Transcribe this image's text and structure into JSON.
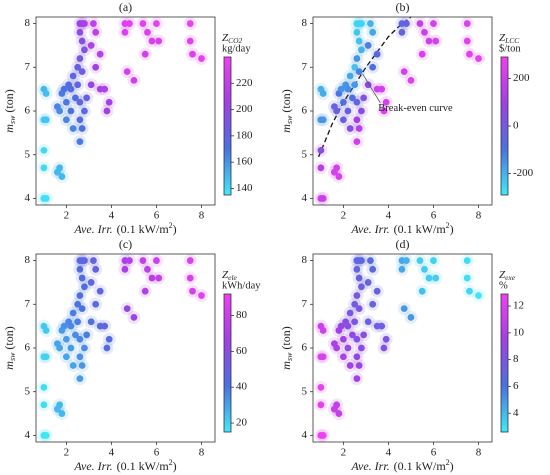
{
  "chart_data": [
    {
      "type": "scatter",
      "title": "(a)",
      "xlabel": {
        "main": "Ave. Irr.",
        "unit": "(0.1 kW/m",
        "sup": "2",
        "end": ")"
      },
      "ylabel": {
        "main": "m",
        "sub": "sw",
        "unit": "(ton)"
      },
      "colorbar": {
        "main": "Z",
        "sub": "CO2",
        "unit": "kg/day"
      },
      "xlim": [
        0.65,
        8.6
      ],
      "ylim": [
        3.85,
        8.15
      ],
      "xticks": [
        2,
        4,
        6,
        8
      ],
      "yticks": [
        4,
        5,
        6,
        7,
        8
      ],
      "clim": [
        135,
        240
      ],
      "cticks": [
        140,
        160,
        180,
        200,
        220
      ],
      "colormap": [
        "#40eaf8",
        "#4a72e0",
        "#a040e6",
        "#f040f2"
      ],
      "x": [
        1.0,
        1.1,
        1.0,
        1.1,
        1.0,
        1.0,
        1.0,
        1.1,
        1.6,
        1.7,
        1.8,
        1.7,
        1.8,
        1.6,
        1.9,
        2.0,
        2.0,
        2.1,
        2.2,
        2.3,
        2.2,
        2.3,
        2.4,
        2.5,
        2.5,
        2.6,
        2.7,
        2.8,
        2.6,
        2.7,
        2.8,
        2.6,
        2.7,
        2.6,
        2.8,
        2.6,
        2.7,
        2.6,
        2.9,
        3.2,
        3.3,
        3.1,
        3.3,
        3.1,
        3.5,
        3.7,
        3.9,
        3.8,
        3.5,
        4.6,
        4.8,
        4.6,
        4.7,
        5.0,
        5.4,
        5.6,
        5.8,
        5.5,
        6.0,
        6.1,
        7.5,
        7.5,
        7.6,
        8.0
      ],
      "y": [
        6.5,
        6.4,
        5.8,
        5.8,
        5.1,
        4.7,
        4.0,
        4.0,
        6.1,
        6.0,
        6.4,
        4.7,
        4.5,
        4.6,
        6.5,
        6.2,
        5.8,
        6.6,
        6.5,
        6.8,
        6.0,
        5.6,
        6.3,
        7.0,
        6.6,
        8.0,
        8.0,
        8.0,
        7.8,
        7.6,
        7.4,
        7.2,
        6.9,
        6.2,
        6.0,
        5.8,
        5.6,
        5.3,
        6.3,
        8.0,
        7.8,
        7.5,
        7.0,
        6.6,
        6.5,
        6.5,
        6.2,
        6.0,
        7.3,
        8.0,
        8.0,
        7.8,
        6.9,
        6.7,
        8.0,
        7.8,
        7.6,
        7.3,
        8.0,
        7.6,
        8.0,
        7.6,
        7.3,
        7.2
      ],
      "c": [
        150,
        148,
        145,
        146,
        140,
        140,
        138,
        138,
        165,
        163,
        168,
        150,
        150,
        150,
        170,
        168,
        165,
        175,
        174,
        178,
        170,
        165,
        173,
        182,
        178,
        200,
        205,
        208,
        198,
        195,
        192,
        188,
        185,
        178,
        175,
        172,
        170,
        168,
        182,
        220,
        218,
        212,
        205,
        200,
        210,
        212,
        208,
        205,
        215,
        232,
        235,
        230,
        228,
        225,
        235,
        232,
        230,
        228,
        236,
        232,
        238,
        235,
        232,
        238
      ]
    },
    {
      "type": "scatter",
      "title": "(b)",
      "xlabel": {
        "main": "Ave. Irr.",
        "unit": "(0.1 kW/m",
        "sup": "2",
        "end": ")"
      },
      "ylabel": {
        "main": "m",
        "sub": "sw",
        "unit": "(ton)"
      },
      "colorbar": {
        "main": "Z",
        "sub": "LCC",
        "unit": "$/ton"
      },
      "xlim": [
        0.65,
        8.6
      ],
      "ylim": [
        3.85,
        8.15
      ],
      "xticks": [
        2,
        4,
        6,
        8
      ],
      "yticks": [
        4,
        5,
        6,
        7,
        8
      ],
      "clim": [
        -290,
        290
      ],
      "cticks": [
        -200,
        0,
        200
      ],
      "colormap": [
        "#40eaf8",
        "#4a72e0",
        "#a040e6",
        "#f040f2"
      ],
      "curve": {
        "x": [
          0.9,
          1.5,
          2.0,
          2.5,
          3.0,
          3.5,
          4.0,
          4.5,
          5.0
        ],
        "y": [
          4.95,
          5.7,
          6.2,
          6.6,
          7.0,
          7.35,
          7.7,
          7.95,
          8.15
        ]
      },
      "annotation": "Break-even curve",
      "x": [
        1.0,
        1.1,
        1.0,
        1.1,
        1.0,
        1.0,
        1.0,
        1.1,
        1.6,
        1.7,
        1.8,
        1.7,
        1.8,
        1.6,
        1.9,
        2.0,
        2.0,
        2.1,
        2.2,
        2.3,
        2.2,
        2.3,
        2.4,
        2.5,
        2.5,
        2.6,
        2.7,
        2.8,
        2.6,
        2.7,
        2.8,
        2.6,
        2.7,
        2.6,
        2.8,
        2.6,
        2.7,
        2.6,
        2.9,
        3.2,
        3.3,
        3.1,
        3.3,
        3.1,
        3.5,
        3.7,
        3.9,
        3.8,
        3.5,
        4.6,
        4.8,
        4.6,
        4.7,
        5.0,
        5.4,
        5.6,
        5.8,
        5.5,
        6.0,
        6.1,
        7.5,
        7.5,
        7.6,
        8.0
      ],
      "y": [
        6.5,
        6.4,
        5.8,
        5.8,
        5.1,
        4.7,
        4.0,
        4.0,
        6.1,
        6.0,
        6.4,
        4.7,
        4.5,
        4.6,
        6.5,
        6.2,
        5.8,
        6.6,
        6.5,
        6.8,
        6.0,
        5.6,
        6.3,
        7.0,
        6.6,
        8.0,
        8.0,
        8.0,
        7.8,
        7.6,
        7.4,
        7.2,
        6.9,
        6.2,
        6.0,
        5.8,
        5.6,
        5.3,
        6.3,
        8.0,
        7.8,
        7.5,
        7.0,
        6.6,
        6.5,
        6.5,
        6.2,
        6.0,
        7.3,
        8.0,
        8.0,
        7.8,
        6.9,
        6.7,
        8.0,
        7.8,
        7.6,
        7.3,
        8.0,
        7.6,
        8.0,
        7.6,
        7.3,
        7.2
      ],
      "c": [
        -200,
        -190,
        -150,
        -150,
        50,
        150,
        200,
        200,
        -20,
        -30,
        -100,
        220,
        230,
        220,
        -150,
        -80,
        -20,
        -150,
        -140,
        -180,
        -20,
        30,
        -80,
        -220,
        -160,
        -250,
        -250,
        -250,
        -230,
        -220,
        -200,
        -150,
        -120,
        -30,
        50,
        100,
        150,
        200,
        20,
        -200,
        -180,
        -120,
        -80,
        50,
        200,
        220,
        230,
        240,
        -60,
        -50,
        -20,
        -40,
        220,
        240,
        180,
        200,
        210,
        230,
        220,
        230,
        250,
        260,
        260,
        270
      ]
    },
    {
      "type": "scatter",
      "title": "(c)",
      "xlabel": {
        "main": "Ave. Irr.",
        "unit": "(0.1 kW/m",
        "sup": "2",
        "end": ")"
      },
      "ylabel": {
        "main": "m",
        "sub": "sw",
        "unit": "(ton)"
      },
      "colorbar": {
        "main": "Z",
        "sub": "ele",
        "unit": "kWh/day"
      },
      "xlim": [
        0.65,
        8.6
      ],
      "ylim": [
        3.85,
        8.15
      ],
      "xticks": [
        2,
        4,
        6,
        8
      ],
      "yticks": [
        4,
        5,
        6,
        7,
        8
      ],
      "clim": [
        15,
        92
      ],
      "cticks": [
        20,
        40,
        60,
        80
      ],
      "colormap": [
        "#40eaf8",
        "#4a72e0",
        "#a040e6",
        "#f040f2"
      ],
      "x": [
        1.0,
        1.1,
        1.0,
        1.1,
        1.0,
        1.0,
        1.0,
        1.1,
        1.6,
        1.7,
        1.8,
        1.7,
        1.8,
        1.6,
        1.9,
        2.0,
        2.0,
        2.1,
        2.2,
        2.3,
        2.2,
        2.3,
        2.4,
        2.5,
        2.5,
        2.6,
        2.7,
        2.8,
        2.6,
        2.7,
        2.8,
        2.6,
        2.7,
        2.6,
        2.8,
        2.6,
        2.7,
        2.6,
        2.9,
        3.2,
        3.3,
        3.1,
        3.3,
        3.1,
        3.5,
        3.7,
        3.9,
        3.8,
        3.5,
        4.6,
        4.8,
        4.6,
        4.7,
        5.0,
        5.4,
        5.6,
        5.8,
        5.5,
        6.0,
        6.1,
        7.5,
        7.5,
        7.6,
        8.0
      ],
      "y": [
        6.5,
        6.4,
        5.8,
        5.8,
        5.1,
        4.7,
        4.0,
        4.0,
        6.1,
        6.0,
        6.4,
        4.7,
        4.5,
        4.6,
        6.5,
        6.2,
        5.8,
        6.6,
        6.5,
        6.8,
        6.0,
        5.6,
        6.3,
        7.0,
        6.6,
        8.0,
        8.0,
        8.0,
        7.8,
        7.6,
        7.4,
        7.2,
        6.9,
        6.2,
        6.0,
        5.8,
        5.6,
        5.3,
        6.3,
        8.0,
        7.8,
        7.5,
        7.0,
        6.6,
        6.5,
        6.5,
        6.2,
        6.0,
        7.3,
        8.0,
        8.0,
        7.8,
        6.9,
        6.7,
        8.0,
        7.8,
        7.6,
        7.3,
        8.0,
        7.6,
        8.0,
        7.6,
        7.3,
        7.2
      ],
      "c": [
        22,
        22,
        20,
        20,
        18,
        18,
        16,
        16,
        30,
        30,
        32,
        26,
        26,
        26,
        34,
        32,
        30,
        36,
        36,
        38,
        32,
        30,
        35,
        40,
        38,
        45,
        46,
        47,
        44,
        43,
        42,
        41,
        40,
        36,
        35,
        34,
        33,
        32,
        38,
        50,
        49,
        47,
        45,
        42,
        45,
        46,
        44,
        43,
        48,
        70,
        72,
        70,
        62,
        64,
        78,
        76,
        74,
        72,
        80,
        78,
        85,
        84,
        83,
        88
      ]
    },
    {
      "type": "scatter",
      "title": "(d)",
      "xlabel": {
        "main": "Ave. Irr.",
        "unit": "(0.1 kW/m",
        "sup": "2",
        "end": ")"
      },
      "ylabel": {
        "main": "m",
        "sub": "sw",
        "unit": "(ton)"
      },
      "colorbar": {
        "main": "Z",
        "sub": "exe",
        "unit": "%"
      },
      "xlim": [
        0.65,
        8.6
      ],
      "ylim": [
        3.85,
        8.15
      ],
      "xticks": [
        2,
        4,
        6,
        8
      ],
      "yticks": [
        4,
        5,
        6,
        7,
        8
      ],
      "clim": [
        2.6,
        12.9
      ],
      "cticks": [
        4,
        6,
        8,
        10,
        12
      ],
      "colormap": [
        "#40eaf8",
        "#4a72e0",
        "#a040e6",
        "#f040f2"
      ],
      "x": [
        1.0,
        1.1,
        1.0,
        1.1,
        1.0,
        1.0,
        1.0,
        1.1,
        1.6,
        1.7,
        1.8,
        1.7,
        1.8,
        1.6,
        1.9,
        2.0,
        2.0,
        2.1,
        2.2,
        2.3,
        2.2,
        2.3,
        2.4,
        2.5,
        2.5,
        2.6,
        2.7,
        2.8,
        2.6,
        2.7,
        2.8,
        2.6,
        2.7,
        2.6,
        2.8,
        2.6,
        2.7,
        2.6,
        2.9,
        3.2,
        3.3,
        3.1,
        3.3,
        3.1,
        3.5,
        3.7,
        3.9,
        3.8,
        3.5,
        4.6,
        4.8,
        4.6,
        4.7,
        5.0,
        5.4,
        5.6,
        5.8,
        5.5,
        6.0,
        6.1,
        7.5,
        7.5,
        7.6,
        8.0
      ],
      "y": [
        6.5,
        6.4,
        5.8,
        5.8,
        5.1,
        4.7,
        4.0,
        4.0,
        6.1,
        6.0,
        6.4,
        4.7,
        4.5,
        4.6,
        6.5,
        6.2,
        5.8,
        6.6,
        6.5,
        6.8,
        6.0,
        5.6,
        6.3,
        7.0,
        6.6,
        8.0,
        8.0,
        8.0,
        7.8,
        7.6,
        7.4,
        7.2,
        6.9,
        6.2,
        6.0,
        5.8,
        5.6,
        5.3,
        6.3,
        8.0,
        7.8,
        7.5,
        7.0,
        6.6,
        6.5,
        6.5,
        6.2,
        6.0,
        7.3,
        8.0,
        8.0,
        7.8,
        6.9,
        6.7,
        8.0,
        7.8,
        7.6,
        7.3,
        8.0,
        7.6,
        8.0,
        7.6,
        7.3,
        7.2
      ],
      "c": [
        11.5,
        11.5,
        12,
        12,
        12.5,
        12.5,
        12.8,
        12.8,
        10,
        10,
        9.5,
        11,
        11,
        11,
        9,
        9.5,
        10,
        8.5,
        8.5,
        8,
        9,
        9.5,
        8.8,
        7.5,
        8,
        7,
        7,
        6.8,
        7,
        7.2,
        7.5,
        7.8,
        8,
        8.5,
        8.8,
        9,
        9.2,
        9.5,
        8.5,
        6.5,
        6.5,
        7,
        7,
        7.5,
        7.5,
        7.5,
        8,
        8,
        7,
        4.5,
        4.3,
        4.5,
        5,
        5,
        3.5,
        3.5,
        3.5,
        3.8,
        3.3,
        3.5,
        3.0,
        3.0,
        3.2,
        2.8
      ]
    }
  ]
}
